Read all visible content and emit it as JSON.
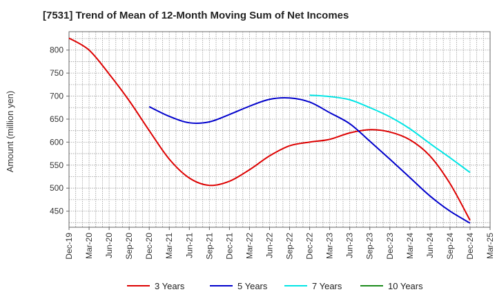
{
  "chart_data": {
    "type": "line",
    "title": "[7531]  Trend of Mean of 12-Month Moving Sum of Net Incomes",
    "xlabel": "",
    "ylabel": "Amount (million yen)",
    "ylim": [
      415,
      840
    ],
    "yticks": [
      450,
      500,
      550,
      600,
      650,
      700,
      750,
      800
    ],
    "xticks": [
      "Dec-19",
      "Mar-20",
      "Jun-20",
      "Sep-20",
      "Dec-20",
      "Mar-21",
      "Jun-21",
      "Sep-21",
      "Dec-21",
      "Mar-22",
      "Jun-22",
      "Sep-22",
      "Dec-22",
      "Mar-23",
      "Jun-23",
      "Sep-23",
      "Dec-23",
      "Mar-24",
      "Jun-24",
      "Sep-24",
      "Dec-24",
      "Mar-25"
    ],
    "grid": true,
    "legend_position": "bottom",
    "series": [
      {
        "name": "3 Years",
        "color": "#dd0000",
        "x": [
          "Dec-19",
          "Mar-20",
          "Jun-20",
          "Sep-20",
          "Dec-20",
          "Mar-21",
          "Jun-21",
          "Sep-21",
          "Dec-21",
          "Mar-22",
          "Jun-22",
          "Sep-22",
          "Dec-22",
          "Mar-23",
          "Jun-23",
          "Sep-23",
          "Dec-23",
          "Mar-24",
          "Jun-24",
          "Sep-24",
          "Dec-24"
        ],
        "values": [
          826,
          800,
          748,
          690,
          625,
          563,
          522,
          506,
          515,
          540,
          570,
          592,
          600,
          606,
          620,
          627,
          622,
          605,
          570,
          510,
          430
        ]
      },
      {
        "name": "5 Years",
        "color": "#0000cc",
        "x": [
          "Dec-20",
          "Mar-21",
          "Jun-21",
          "Sep-21",
          "Dec-21",
          "Mar-22",
          "Jun-22",
          "Sep-22",
          "Dec-22",
          "Mar-23",
          "Jun-23",
          "Sep-23",
          "Dec-23",
          "Mar-24",
          "Jun-24",
          "Sep-24",
          "Dec-24"
        ],
        "values": [
          677,
          656,
          642,
          644,
          660,
          678,
          693,
          696,
          687,
          664,
          640,
          602,
          563,
          523,
          483,
          450,
          424
        ]
      },
      {
        "name": "7 Years",
        "color": "#00e5e5",
        "x": [
          "Dec-22",
          "Mar-23",
          "Jun-23",
          "Sep-23",
          "Dec-23",
          "Mar-24",
          "Jun-24",
          "Sep-24",
          "Dec-24"
        ],
        "values": [
          702,
          699,
          692,
          675,
          655,
          629,
          597,
          566,
          534
        ]
      },
      {
        "name": "10 Years",
        "color": "#1a8a1a",
        "x": [],
        "values": []
      }
    ]
  }
}
